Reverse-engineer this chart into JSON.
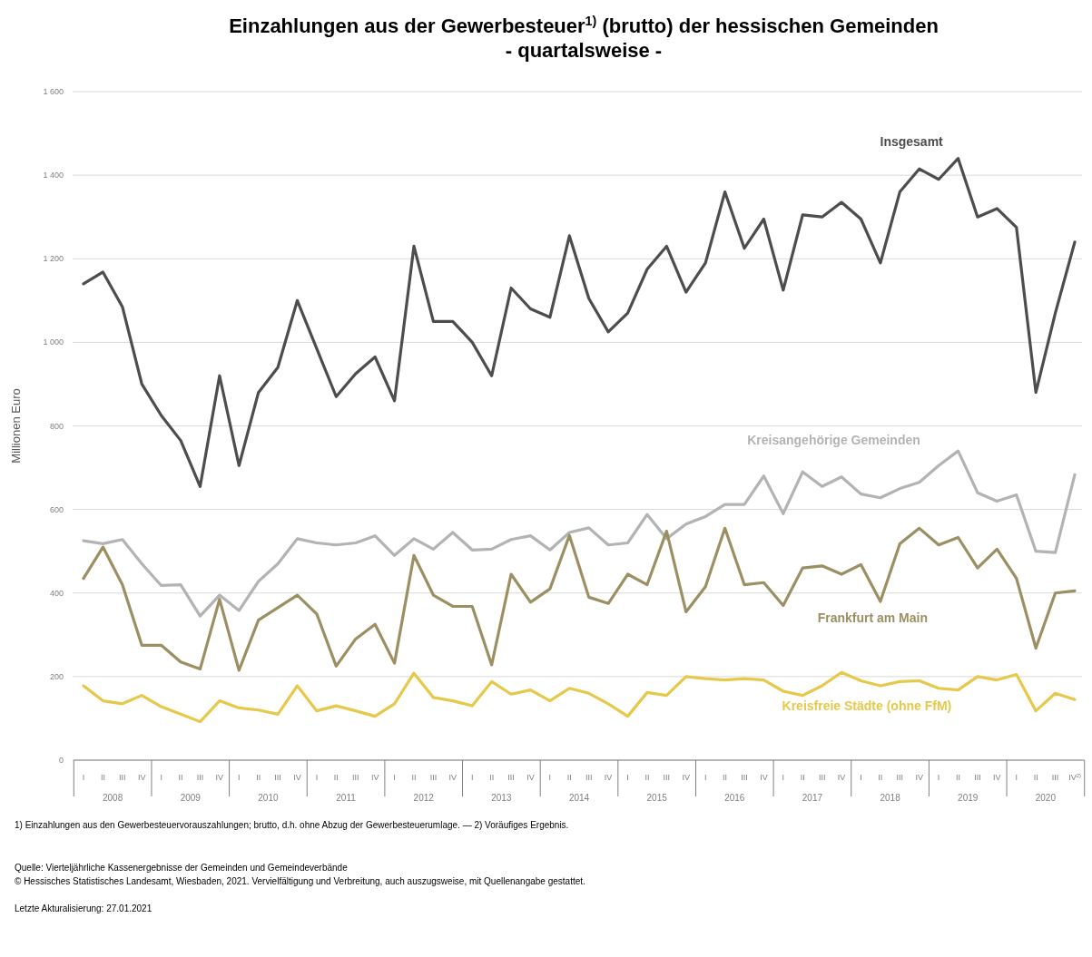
{
  "chart_data": {
    "type": "line",
    "title": "Einzahlungen aus der Gewerbesteuer$^{1)}$ (brutto) der hessischen Gemeinden",
    "subtitle": "- quartalsweise -",
    "ylabel": "Millionen Euro",
    "categories": [
      "I",
      "II",
      "III",
      "IV",
      "I",
      "II",
      "III",
      "IV",
      "I",
      "II",
      "III",
      "IV",
      "I",
      "II",
      "III",
      "IV",
      "I",
      "II",
      "III",
      "IV",
      "I",
      "II",
      "III",
      "IV",
      "I",
      "II",
      "III",
      "IV",
      "I",
      "II",
      "III",
      "IV",
      "I",
      "II",
      "III",
      "IV",
      "I",
      "II",
      "III",
      "IV",
      "I",
      "II",
      "III",
      "IV",
      "I",
      "II",
      "III",
      "IV",
      "I",
      "II",
      "III",
      "IV$^{2)}$"
    ],
    "ylim": [
      0,
      1600
    ],
    "yticks": [
      0,
      200,
      400,
      600,
      800,
      {
        "value": 1000,
        "label": "1 000"
      },
      {
        "value": 1200,
        "label": "1 200"
      },
      {
        "value": 1400,
        "label": "1 400"
      },
      {
        "value": 1600,
        "label": "1 600"
      }
    ],
    "grid": "y",
    "legend": false,
    "marker": "none",
    "line_style": "solid",
    "series": [
      {
        "name": "Insgesamt",
        "color": "#4d4d4d",
        "values": [
          1140,
          1168,
          1085,
          900,
          825,
          765,
          655,
          920,
          705,
          880,
          940,
          1100,
          985,
          870,
          925,
          965,
          860,
          1230,
          1050,
          1050,
          1000,
          920,
          1130,
          1080,
          1060,
          1255,
          1105,
          1025,
          1070,
          1175,
          1230,
          1120,
          1190,
          1360,
          1225,
          1295,
          1125,
          1305,
          1300,
          1335,
          1295,
          1190,
          1360,
          1415,
          1390,
          1440,
          1300,
          1320,
          1275,
          880,
          1070,
          1240
        ]
      },
      {
        "name": "Kreisangehörige Gemeinden",
        "color": "#b3b3b3",
        "values": [
          525,
          518,
          528,
          470,
          418,
          420,
          345,
          395,
          358,
          428,
          470,
          530,
          520,
          515,
          520,
          537,
          490,
          530,
          505,
          545,
          503,
          505,
          528,
          537,
          503,
          545,
          556,
          515,
          520,
          588,
          530,
          565,
          583,
          612,
          612,
          680,
          590,
          690,
          655,
          678,
          637,
          628,
          650,
          665,
          705,
          740,
          640,
          620,
          635,
          500,
          497,
          683
        ]
      },
      {
        "name": "Frankfurt am Main",
        "color": "#9c8f63",
        "values": [
          435,
          510,
          420,
          275,
          275,
          235,
          218,
          385,
          215,
          335,
          365,
          395,
          350,
          225,
          290,
          325,
          232,
          490,
          395,
          368,
          368,
          228,
          445,
          378,
          410,
          538,
          390,
          375,
          445,
          420,
          548,
          355,
          415,
          555,
          420,
          425,
          370,
          460,
          465,
          445,
          468,
          380,
          518,
          555,
          515,
          533,
          460,
          505,
          435,
          268,
          400,
          405
        ]
      },
      {
        "name": "Kreisfreie Städte (ohne FfM)",
        "color": "#e6c84a",
        "values": [
          178,
          142,
          135,
          155,
          128,
          110,
          92,
          142,
          125,
          120,
          110,
          178,
          118,
          130,
          118,
          105,
          135,
          208,
          150,
          142,
          130,
          188,
          158,
          168,
          142,
          172,
          160,
          135,
          105,
          162,
          155,
          200,
          195,
          192,
          195,
          192,
          165,
          155,
          178,
          210,
          190,
          178,
          188,
          190,
          172,
          168,
          200,
          192,
          205,
          118,
          160,
          145
        ]
      }
    ],
    "annotations": [
      "2008",
      "2009",
      "2010",
      "2011",
      "2012",
      "2013",
      "2014",
      "2015",
      "2016",
      "2017",
      "2018",
      "2019",
      "2020",
      "1) Einzahlungen aus den Gewerbesteuervorauszahlungen; brutto, d.h. ohne Abzug der Gewerbesteuerumlage. — 2) Voräufiges Ergebnis.",
      "Quelle: Vierteljährliche Kassenergebnisse der Gemeinden und Gemeindeverbände",
      "© Hessisches Statistisches Landesamt, Wiesbaden, 2021. Vervielfältigung und Verbreitung, auch auszugsweise, mit Quellenangabe gestattet.",
      "Letzte Akturalisierung:  27.01.2021"
    ]
  }
}
